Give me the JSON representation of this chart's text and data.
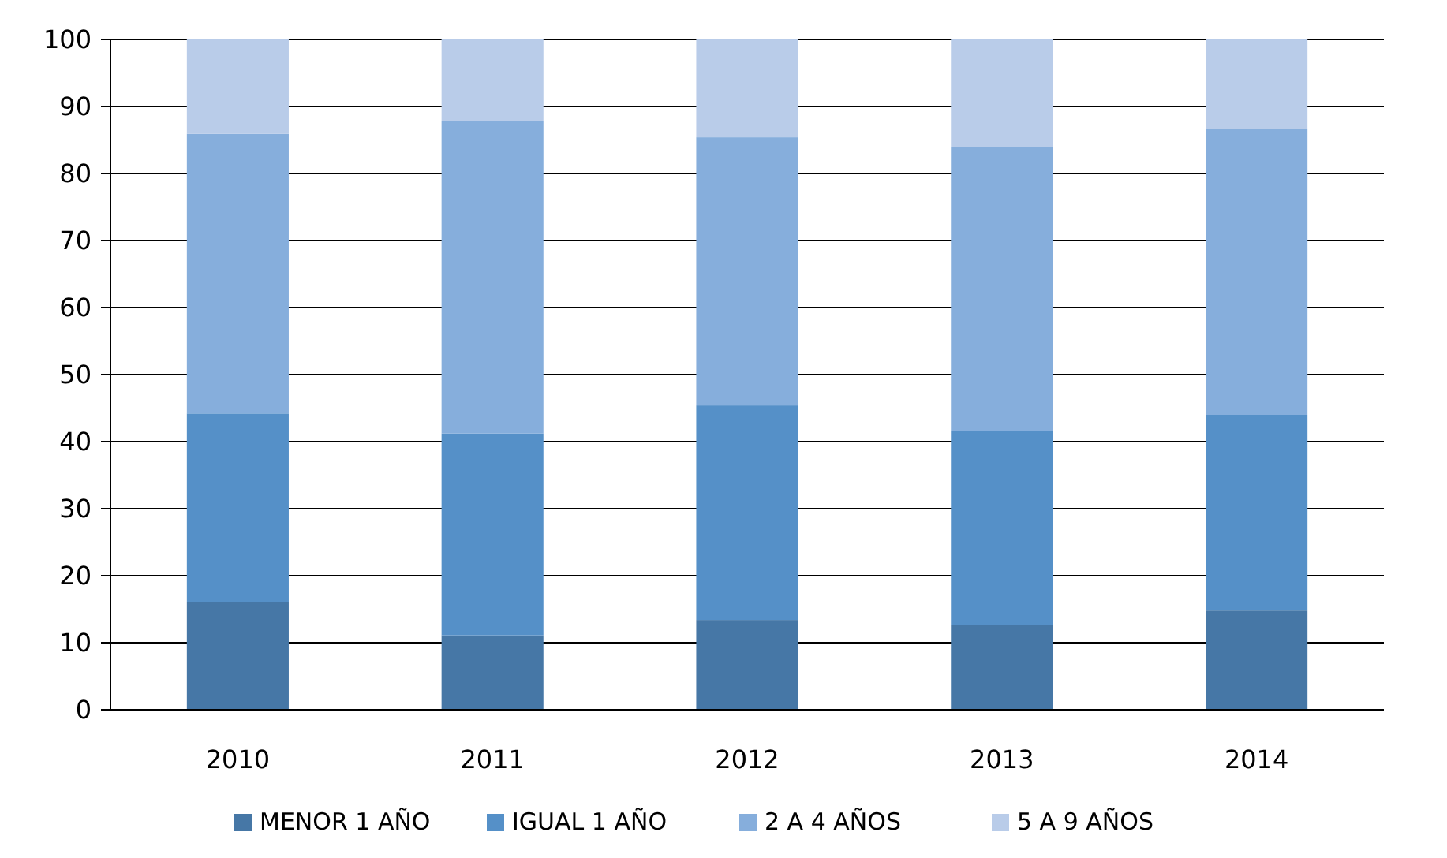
{
  "chart_data": {
    "type": "bar",
    "stacked": true,
    "categories": [
      "2010",
      "2011",
      "2012",
      "2013",
      "2014"
    ],
    "series": [
      {
        "name": "MENOR 1 AÑO",
        "color": "#4677a6",
        "values": [
          16,
          11.1,
          13.4,
          12.7,
          14.8
        ]
      },
      {
        "name": "IGUAL  1 AÑO",
        "color": "#5590c8",
        "values": [
          28.2,
          30.1,
          32,
          28.9,
          29.2
        ]
      },
      {
        "name": "2 A 4 AÑOS",
        "color": "#86aedc",
        "values": [
          41.7,
          46.6,
          40,
          42.4,
          42.6
        ]
      },
      {
        "name": "5 A 9 AÑOS",
        "color": "#b9cce9",
        "values": [
          14.1,
          12.2,
          14.6,
          16,
          13.4
        ]
      }
    ],
    "ylim": [
      0,
      100
    ],
    "yticks": [
      0,
      10,
      20,
      30,
      40,
      50,
      60,
      70,
      80,
      90,
      100
    ],
    "grid": "y",
    "legend": "bottom"
  }
}
